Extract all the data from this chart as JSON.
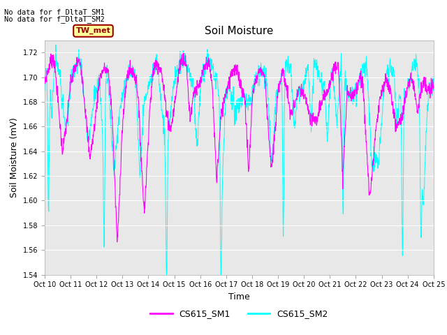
{
  "title": "Soil Moisture",
  "ylabel": "Soil Moisture (mV)",
  "xlabel": "Time",
  "ylim": [
    1.54,
    1.73
  ],
  "yticks": [
    1.54,
    1.56,
    1.58,
    1.6,
    1.62,
    1.64,
    1.66,
    1.68,
    1.7,
    1.72
  ],
  "color_sm1": "#FF00FF",
  "color_sm2": "#00FFFF",
  "note1": "No data for f_DltaT_SM1",
  "note2": "No data for f_DltaT_SM2",
  "legend_label1": "CS615_SM1",
  "legend_label2": "CS615_SM2",
  "tw_met_label": "TW_met",
  "tw_met_bg": "#FFFF99",
  "tw_met_border": "#990000",
  "background_plot": "#E8E8E8",
  "background_fig": "#FFFFFF",
  "num_days": 15,
  "n_per_day": 96,
  "seed": 7
}
